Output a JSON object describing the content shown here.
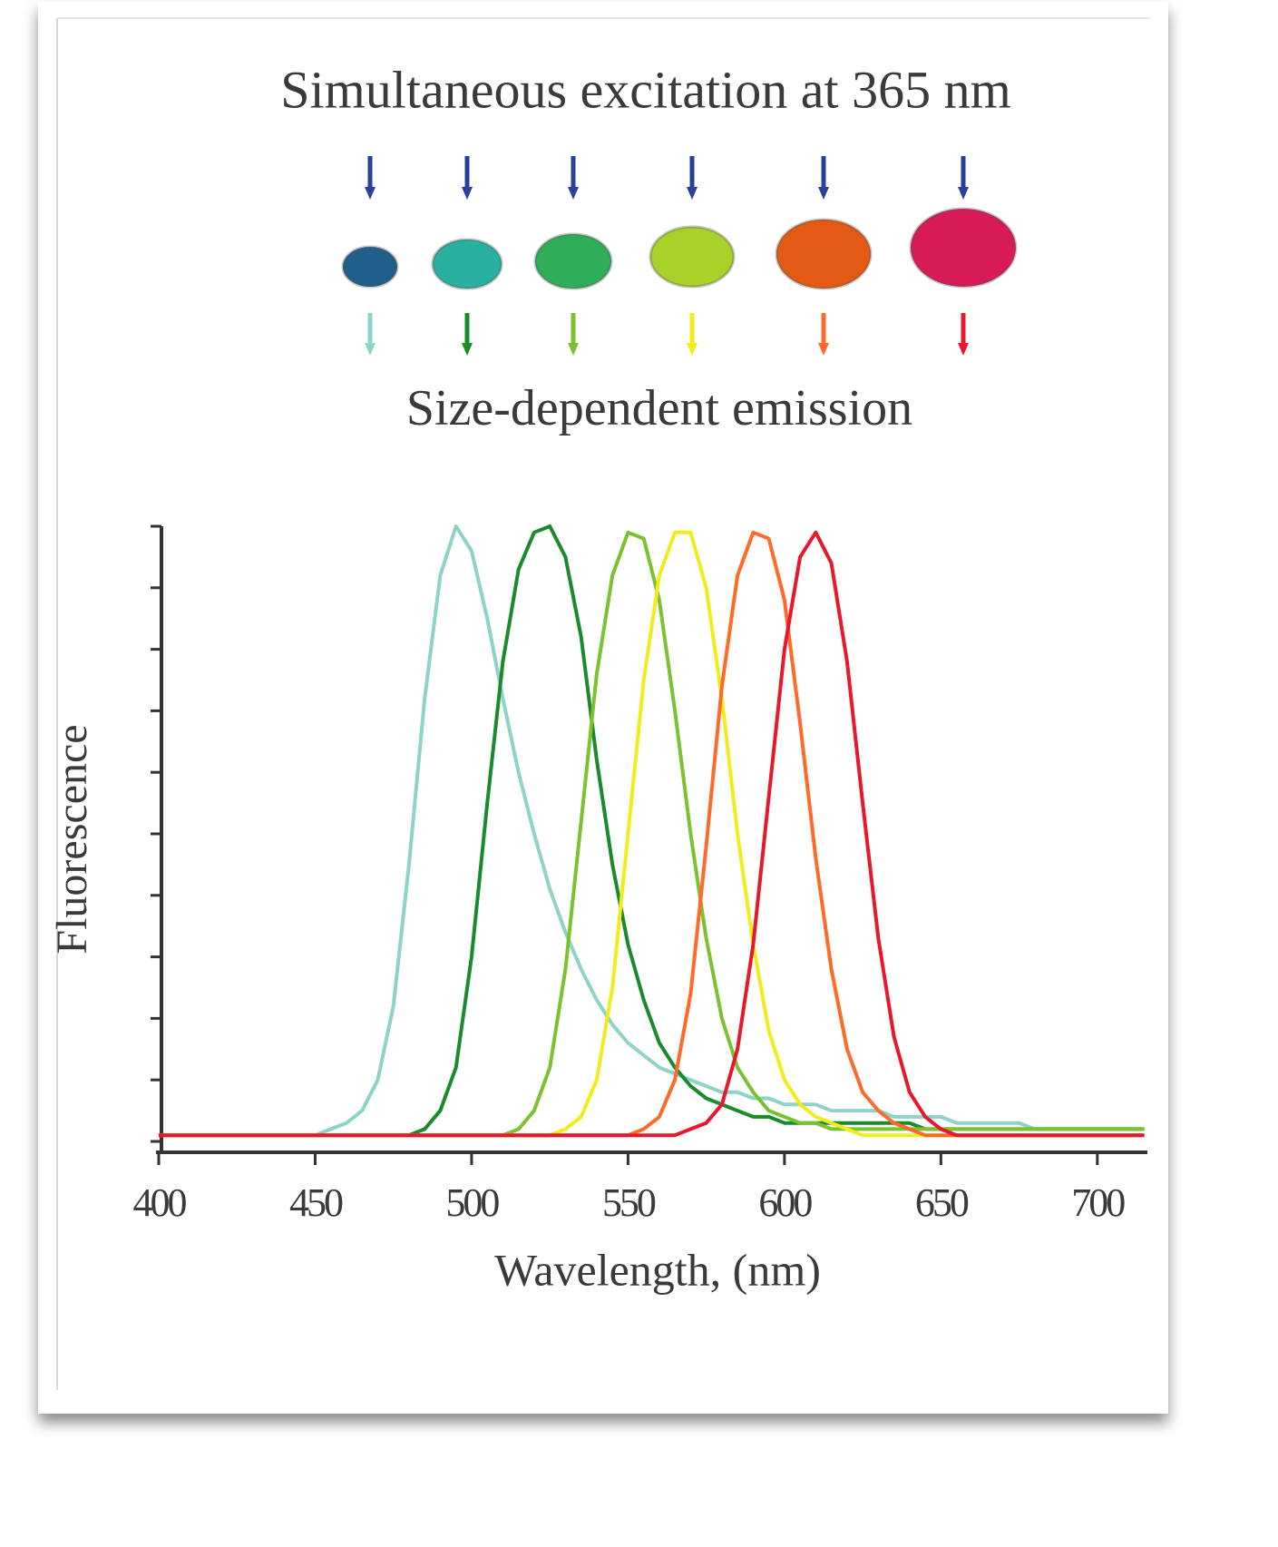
{
  "chart_data": {
    "type": "line",
    "title": "Simultaneous excitation at 365 nm",
    "subtitle": "Size-dependent emission",
    "xlabel": "Wavelength, (nm)",
    "ylabel": "Fluorescence",
    "x": [
      400,
      405,
      410,
      415,
      420,
      425,
      430,
      435,
      440,
      445,
      450,
      455,
      460,
      465,
      470,
      475,
      480,
      485,
      490,
      495,
      500,
      505,
      510,
      515,
      520,
      525,
      530,
      535,
      540,
      545,
      550,
      555,
      560,
      565,
      570,
      575,
      580,
      585,
      590,
      595,
      600,
      605,
      610,
      615,
      620,
      625,
      630,
      635,
      640,
      645,
      650,
      655,
      660,
      665,
      670,
      675,
      680,
      685,
      690,
      695,
      700,
      705,
      710,
      715
    ],
    "series": [
      {
        "color": "#8ed3c8",
        "values": [
          0.01,
          0.01,
          0.01,
          0.01,
          0.01,
          0.01,
          0.01,
          0.01,
          0.01,
          0.01,
          0.01,
          0.02,
          0.03,
          0.05,
          0.1,
          0.22,
          0.45,
          0.72,
          0.92,
          1.0,
          0.96,
          0.85,
          0.72,
          0.6,
          0.5,
          0.41,
          0.34,
          0.28,
          0.23,
          0.19,
          0.16,
          0.14,
          0.12,
          0.11,
          0.1,
          0.09,
          0.08,
          0.08,
          0.07,
          0.07,
          0.06,
          0.06,
          0.06,
          0.05,
          0.05,
          0.05,
          0.05,
          0.04,
          0.04,
          0.04,
          0.04,
          0.03,
          0.03,
          0.03,
          0.03,
          0.03,
          0.02,
          0.02,
          0.02,
          0.02,
          0.02,
          0.02,
          0.02,
          0.02
        ]
      },
      {
        "color": "#1a8a2a",
        "values": [
          0.01,
          0.01,
          0.01,
          0.01,
          0.01,
          0.01,
          0.01,
          0.01,
          0.01,
          0.01,
          0.01,
          0.01,
          0.01,
          0.01,
          0.01,
          0.01,
          0.01,
          0.02,
          0.05,
          0.12,
          0.3,
          0.55,
          0.78,
          0.93,
          0.99,
          1.0,
          0.95,
          0.82,
          0.62,
          0.45,
          0.32,
          0.23,
          0.16,
          0.12,
          0.09,
          0.07,
          0.06,
          0.05,
          0.04,
          0.04,
          0.03,
          0.03,
          0.03,
          0.03,
          0.03,
          0.03,
          0.03,
          0.03,
          0.03,
          0.02,
          0.02,
          0.02,
          0.02,
          0.02,
          0.02,
          0.02,
          0.02,
          0.02,
          0.02,
          0.02,
          0.02,
          0.02,
          0.02,
          0.02
        ]
      },
      {
        "color": "#7cc230",
        "values": [
          0.01,
          0.01,
          0.01,
          0.01,
          0.01,
          0.01,
          0.01,
          0.01,
          0.01,
          0.01,
          0.01,
          0.01,
          0.01,
          0.01,
          0.01,
          0.01,
          0.01,
          0.01,
          0.01,
          0.01,
          0.01,
          0.01,
          0.01,
          0.02,
          0.05,
          0.12,
          0.28,
          0.52,
          0.76,
          0.92,
          0.99,
          0.98,
          0.88,
          0.7,
          0.5,
          0.33,
          0.2,
          0.12,
          0.08,
          0.05,
          0.04,
          0.03,
          0.03,
          0.02,
          0.02,
          0.02,
          0.02,
          0.02,
          0.02,
          0.02,
          0.02,
          0.02,
          0.02,
          0.02,
          0.02,
          0.02,
          0.02,
          0.02,
          0.02,
          0.02,
          0.02,
          0.02,
          0.02,
          0.02
        ]
      },
      {
        "color": "#f2ec1c",
        "values": [
          0.01,
          0.01,
          0.01,
          0.01,
          0.01,
          0.01,
          0.01,
          0.01,
          0.01,
          0.01,
          0.01,
          0.01,
          0.01,
          0.01,
          0.01,
          0.01,
          0.01,
          0.01,
          0.01,
          0.01,
          0.01,
          0.01,
          0.01,
          0.01,
          0.01,
          0.01,
          0.02,
          0.04,
          0.1,
          0.25,
          0.5,
          0.75,
          0.92,
          0.99,
          0.99,
          0.9,
          0.72,
          0.5,
          0.32,
          0.18,
          0.1,
          0.06,
          0.04,
          0.03,
          0.02,
          0.01,
          0.01,
          0.01,
          0.01,
          0.01,
          0.01,
          0.01,
          0.01,
          0.01,
          0.01,
          0.01,
          0.01,
          0.01,
          0.01,
          0.01,
          0.01,
          0.01,
          0.01,
          0.01
        ]
      },
      {
        "color": "#ff6a2a",
        "values": [
          0.01,
          0.01,
          0.01,
          0.01,
          0.01,
          0.01,
          0.01,
          0.01,
          0.01,
          0.01,
          0.01,
          0.01,
          0.01,
          0.01,
          0.01,
          0.01,
          0.01,
          0.01,
          0.01,
          0.01,
          0.01,
          0.01,
          0.01,
          0.01,
          0.01,
          0.01,
          0.01,
          0.01,
          0.01,
          0.01,
          0.01,
          0.02,
          0.04,
          0.1,
          0.24,
          0.48,
          0.74,
          0.92,
          0.99,
          0.98,
          0.88,
          0.68,
          0.46,
          0.28,
          0.15,
          0.08,
          0.05,
          0.03,
          0.02,
          0.01,
          0.01,
          0.01,
          0.01,
          0.01,
          0.01,
          0.01,
          0.01,
          0.01,
          0.01,
          0.01,
          0.01,
          0.01,
          0.01,
          0.01
        ]
      },
      {
        "color": "#e8182c",
        "values": [
          0.01,
          0.01,
          0.01,
          0.01,
          0.01,
          0.01,
          0.01,
          0.01,
          0.01,
          0.01,
          0.01,
          0.01,
          0.01,
          0.01,
          0.01,
          0.01,
          0.01,
          0.01,
          0.01,
          0.01,
          0.01,
          0.01,
          0.01,
          0.01,
          0.01,
          0.01,
          0.01,
          0.01,
          0.01,
          0.01,
          0.01,
          0.01,
          0.01,
          0.01,
          0.02,
          0.03,
          0.06,
          0.15,
          0.32,
          0.56,
          0.8,
          0.95,
          0.99,
          0.94,
          0.78,
          0.55,
          0.33,
          0.17,
          0.08,
          0.04,
          0.02,
          0.01,
          0.01,
          0.01,
          0.01,
          0.01,
          0.01,
          0.01,
          0.01,
          0.01,
          0.01,
          0.01,
          0.01,
          0.01
        ]
      }
    ],
    "xlim": [
      400,
      716
    ],
    "xticks": [
      400,
      450,
      500,
      550,
      600,
      650,
      700
    ],
    "ylim": [
      0,
      1
    ],
    "yticks": [
      0,
      0.1,
      0.2,
      0.3,
      0.4,
      0.5,
      0.6,
      0.7,
      0.8,
      0.9,
      1
    ]
  }
}
